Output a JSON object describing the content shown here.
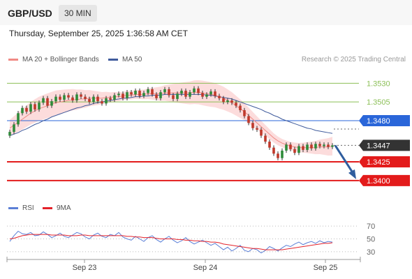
{
  "header": {
    "pair": "GBP/USD",
    "timeframe": "30 MIN"
  },
  "timestamp": "Thursday, September 25, 2025 1:36:58 AM CET",
  "credit": "Research © 2025 Trading Central",
  "legend_top": [
    {
      "label": "MA 20 + Bollinger Bands",
      "color": "#f08a85"
    },
    {
      "label": "MA 50",
      "color": "#3f5b9c"
    }
  ],
  "legend_bottom": [
    {
      "label": "RSI",
      "color": "#5b7fd6"
    },
    {
      "label": "9MA",
      "color": "#e4222a"
    }
  ],
  "colors": {
    "resistance": "#8bbf56",
    "pivot": "#2a66d9",
    "support": "#e31b1b",
    "price_tag": "#333333",
    "arrow": "#2f5d9e",
    "bollinger": "#fcd6d6",
    "ma20": "#f08a85",
    "ma50": "#3f5b9c",
    "up_candle": "#2e8b3a",
    "down_candle": "#c0392b"
  },
  "chart_data": [
    {
      "type": "candlestick",
      "title": "GBP/USD 30 MIN",
      "x_ticks": [
        "Sep 23",
        "Sep 24",
        "Sep 25"
      ],
      "ylim": [
        1.3385,
        1.3548
      ],
      "levels": [
        {
          "value": 1.353,
          "label": "1.3530",
          "kind": "resistance"
        },
        {
          "value": 1.3505,
          "label": "1.3505",
          "kind": "resistance"
        },
        {
          "value": 1.348,
          "label": "1.3480",
          "kind": "pivot"
        },
        {
          "value": 1.3447,
          "label": "1.3447",
          "kind": "last_price"
        },
        {
          "value": 1.3425,
          "label": "1.3425",
          "kind": "support"
        },
        {
          "value": 1.34,
          "label": "1.3400",
          "kind": "support"
        }
      ],
      "close_series": [
        1.3465,
        1.3475,
        1.349,
        1.3497,
        1.3492,
        1.3502,
        1.3495,
        1.3504,
        1.351,
        1.35,
        1.3506,
        1.3512,
        1.3508,
        1.3514,
        1.3511,
        1.3507,
        1.3515,
        1.3512,
        1.3509,
        1.3505,
        1.3512,
        1.3506,
        1.3503,
        1.351,
        1.3508,
        1.3514,
        1.3516,
        1.351,
        1.3518,
        1.3515,
        1.352,
        1.3513,
        1.3517,
        1.3522,
        1.3515,
        1.351,
        1.3518,
        1.3522,
        1.3514,
        1.3509,
        1.3516,
        1.352,
        1.3512,
        1.3518,
        1.3523,
        1.3517,
        1.3512,
        1.3515,
        1.3519,
        1.3513,
        1.351,
        1.3505,
        1.3507,
        1.3504,
        1.35,
        1.3494,
        1.3486,
        1.3477,
        1.347,
        1.3468,
        1.346,
        1.3452,
        1.3444,
        1.3436,
        1.343,
        1.344,
        1.3448,
        1.3442,
        1.3437,
        1.3446,
        1.3441,
        1.3448,
        1.3443,
        1.3449,
        1.3446,
        1.3448,
        1.3445,
        1.3447
      ],
      "ma20": [
        1.347,
        1.3474,
        1.3478,
        1.3482,
        1.3486,
        1.349,
        1.3493,
        1.3496,
        1.3498,
        1.35,
        1.3502,
        1.3504,
        1.3505,
        1.3506,
        1.3507,
        1.3508,
        1.3508,
        1.3509,
        1.3509,
        1.351,
        1.351,
        1.351,
        1.351,
        1.3511,
        1.3511,
        1.3512,
        1.3512,
        1.3513,
        1.3514,
        1.3514,
        1.3515,
        1.3515,
        1.3515,
        1.3516,
        1.3516,
        1.3516,
        1.3516,
        1.3517,
        1.3517,
        1.3517,
        1.3517,
        1.3517,
        1.3517,
        1.3517,
        1.3518,
        1.3518,
        1.3517,
        1.3516,
        1.3515,
        1.3514,
        1.3512,
        1.351,
        1.3507,
        1.3504,
        1.35,
        1.3496,
        1.3492,
        1.3487,
        1.3482,
        1.3477,
        1.3472,
        1.3467,
        1.3462,
        1.3457,
        1.3453,
        1.345,
        1.3448,
        1.3446,
        1.3445,
        1.3444,
        1.3444,
        1.3444,
        1.3444,
        1.3444,
        1.3445,
        1.3445,
        1.3445,
        1.3446
      ],
      "ma50": [
        1.346,
        1.3462,
        1.3464,
        1.3467,
        1.3469,
        1.3472,
        1.3475,
        1.3477,
        1.348,
        1.3482,
        1.3485,
        1.3487,
        1.3489,
        1.3491,
        1.3493,
        1.3495,
        1.3497,
        1.3498,
        1.35,
        1.3501,
        1.3503,
        1.3504,
        1.3505,
        1.3506,
        1.3507,
        1.3508,
        1.3509,
        1.351,
        1.351,
        1.3511,
        1.3512,
        1.3512,
        1.3513,
        1.3513,
        1.3514,
        1.3514,
        1.3514,
        1.3515,
        1.3515,
        1.3515,
        1.3515,
        1.3515,
        1.3515,
        1.3515,
        1.3515,
        1.3515,
        1.3515,
        1.3514,
        1.3514,
        1.3513,
        1.3512,
        1.3511,
        1.351,
        1.3509,
        1.3507,
        1.3505,
        1.3503,
        1.3501,
        1.3499,
        1.3497,
        1.3495,
        1.3492,
        1.349,
        1.3487,
        1.3485,
        1.3482,
        1.348,
        1.3478,
        1.3476,
        1.3474,
        1.3472,
        1.347,
        1.3469,
        1.3467,
        1.3466,
        1.3465,
        1.3464,
        1.3463
      ],
      "forecast": {
        "from": 1.3447,
        "to": 1.34,
        "direction": "down"
      }
    },
    {
      "type": "line",
      "title": "RSI",
      "y_ticks": [
        "70",
        "50",
        "30"
      ],
      "ylim": [
        20,
        80
      ],
      "series": [
        {
          "name": "RSI",
          "values": [
            46,
            55,
            62,
            58,
            57,
            60,
            55,
            56,
            61,
            57,
            52,
            55,
            59,
            54,
            52,
            56,
            60,
            58,
            53,
            50,
            56,
            59,
            54,
            52,
            57,
            55,
            60,
            53,
            50,
            48,
            54,
            50,
            46,
            52,
            55,
            49,
            45,
            50,
            54,
            48,
            44,
            47,
            52,
            46,
            42,
            45,
            48,
            44,
            40,
            43,
            38,
            33,
            37,
            31,
            35,
            40,
            32,
            30,
            35,
            33,
            28,
            32,
            38,
            35,
            31,
            36,
            40,
            38,
            42,
            45,
            41,
            44,
            46,
            43,
            47,
            44,
            46,
            45
          ]
        },
        {
          "name": "9MA",
          "values": [
            50,
            51,
            53,
            55,
            56,
            57,
            57,
            57,
            57,
            57,
            56,
            56,
            56,
            56,
            55,
            55,
            55,
            56,
            56,
            55,
            55,
            55,
            55,
            55,
            55,
            55,
            55,
            55,
            54,
            54,
            53,
            53,
            52,
            52,
            52,
            51,
            50,
            50,
            50,
            50,
            49,
            49,
            48,
            48,
            47,
            47,
            46,
            46,
            45,
            45,
            44,
            42,
            41,
            40,
            39,
            38,
            37,
            36,
            35,
            35,
            34,
            33,
            33,
            33,
            33,
            33,
            34,
            35,
            36,
            37,
            38,
            39,
            40,
            41,
            42,
            43,
            43,
            44
          ]
        }
      ]
    }
  ]
}
